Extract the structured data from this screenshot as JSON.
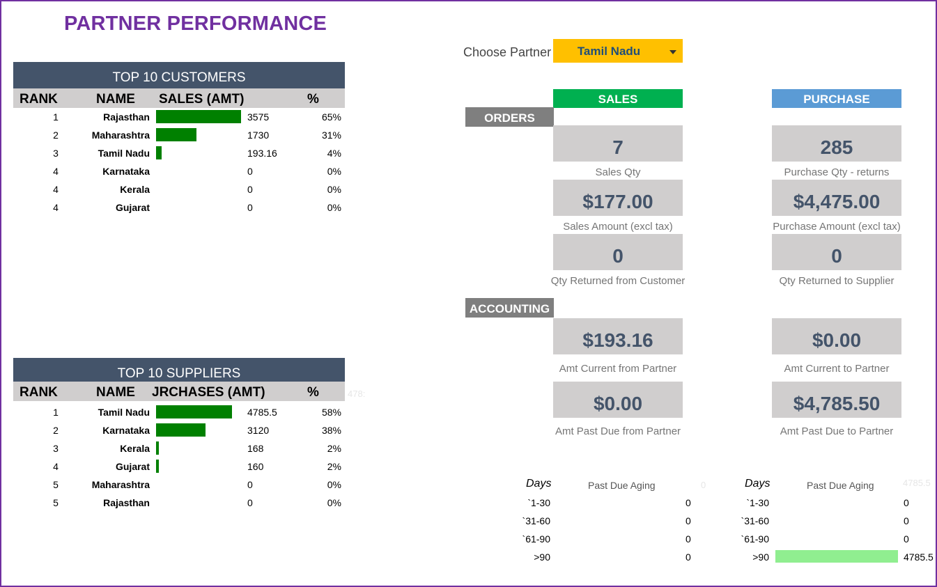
{
  "title": "PARTNER PERFORMANCE",
  "customers": {
    "header": "TOP 10 CUSTOMERS",
    "columns": {
      "rank": "RANK",
      "name": "NAME",
      "amount": "SALES (AMT)",
      "pct": "%"
    },
    "rows": [
      {
        "rank": "1",
        "name": "Rajasthan",
        "value": "3575",
        "pct": "65%",
        "share": 0.65
      },
      {
        "rank": "2",
        "name": "Maharashtra",
        "value": "1730",
        "pct": "31%",
        "share": 0.31
      },
      {
        "rank": "3",
        "name": "Tamil Nadu",
        "value": "193.16",
        "pct": "4%",
        "share": 0.04
      },
      {
        "rank": "4",
        "name": "Karnataka",
        "value": "0",
        "pct": "0%",
        "share": 0
      },
      {
        "rank": "4",
        "name": "Kerala",
        "value": "0",
        "pct": "0%",
        "share": 0
      },
      {
        "rank": "4",
        "name": "Gujarat",
        "value": "0",
        "pct": "0%",
        "share": 0
      }
    ]
  },
  "suppliers": {
    "header": "TOP 10 SUPPLIERS",
    "columns": {
      "rank": "RANK",
      "name": "NAME",
      "amount": "JRCHASES (AMT)",
      "pct": "%"
    },
    "ghost_value": "478:",
    "rows": [
      {
        "rank": "1",
        "name": "Tamil Nadu",
        "value": "4785.5",
        "pct": "58%",
        "share": 0.58
      },
      {
        "rank": "2",
        "name": "Karnataka",
        "value": "3120",
        "pct": "38%",
        "share": 0.38
      },
      {
        "rank": "3",
        "name": "Kerala",
        "value": "168",
        "pct": "2%",
        "share": 0.02
      },
      {
        "rank": "4",
        "name": "Gujarat",
        "value": "160",
        "pct": "2%",
        "share": 0.02
      },
      {
        "rank": "5",
        "name": "Maharashtra",
        "value": "0",
        "pct": "0%",
        "share": 0
      },
      {
        "rank": "5",
        "name": "Rajasthan",
        "value": "0",
        "pct": "0%",
        "share": 0
      }
    ]
  },
  "chooser": {
    "label": "Choose Partner",
    "value": "Tamil Nadu"
  },
  "headers": {
    "sales": "SALES",
    "purchase": "PURCHASE"
  },
  "sections": {
    "orders": "ORDERS",
    "accounting": "ACCOUNTING"
  },
  "kpis": {
    "sales_qty": {
      "value": "7",
      "label": "Sales Qty"
    },
    "purchase_qty": {
      "value": "285",
      "label": "Purchase Qty - returns"
    },
    "sales_amount": {
      "value": "$177.00",
      "label": "Sales Amount (excl tax)"
    },
    "purchase_amount": {
      "value": "$4,475.00",
      "label": "Purchase Amount (excl tax)"
    },
    "qty_ret_customer": {
      "value": "0",
      "label": "Qty Returned from Customer"
    },
    "qty_ret_supplier": {
      "value": "0",
      "label": "Qty Returned to Supplier"
    },
    "amt_current_from": {
      "value": "$193.16",
      "label": "Amt Current from Partner"
    },
    "amt_current_to": {
      "value": "$0.00",
      "label": "Amt Current to Partner"
    },
    "amt_past_from": {
      "value": "$0.00",
      "label": "Amt Past Due from Partner"
    },
    "amt_past_to": {
      "value": "$4,785.50",
      "label": "Amt Past Due to Partner"
    }
  },
  "aging_sales": {
    "days_label": "Days",
    "title": "Past Due Aging",
    "ghost": "0",
    "rows": [
      {
        "bucket": "`1-30",
        "value": "0"
      },
      {
        "bucket": "`31-60",
        "value": "0"
      },
      {
        "bucket": "`61-90",
        "value": "0"
      },
      {
        "bucket": ">90",
        "value": "0"
      }
    ]
  },
  "aging_purchase": {
    "days_label": "Days",
    "title": "Past Due Aging",
    "ghost": "4785.5",
    "rows": [
      {
        "bucket": "`1-30",
        "value": "0"
      },
      {
        "bucket": "`31-60",
        "value": "0"
      },
      {
        "bucket": "`61-90",
        "value": "0"
      },
      {
        "bucket": ">90",
        "value": "4785.5"
      }
    ]
  },
  "colors": {
    "title": "#7030a0",
    "table_header": "#44546a",
    "bar": "#008000",
    "sales": "#00b050",
    "purchase": "#5b9bd5",
    "chooser": "#ffc000",
    "kpi_bg": "#d0cece",
    "aging_bar": "#90ee90"
  }
}
